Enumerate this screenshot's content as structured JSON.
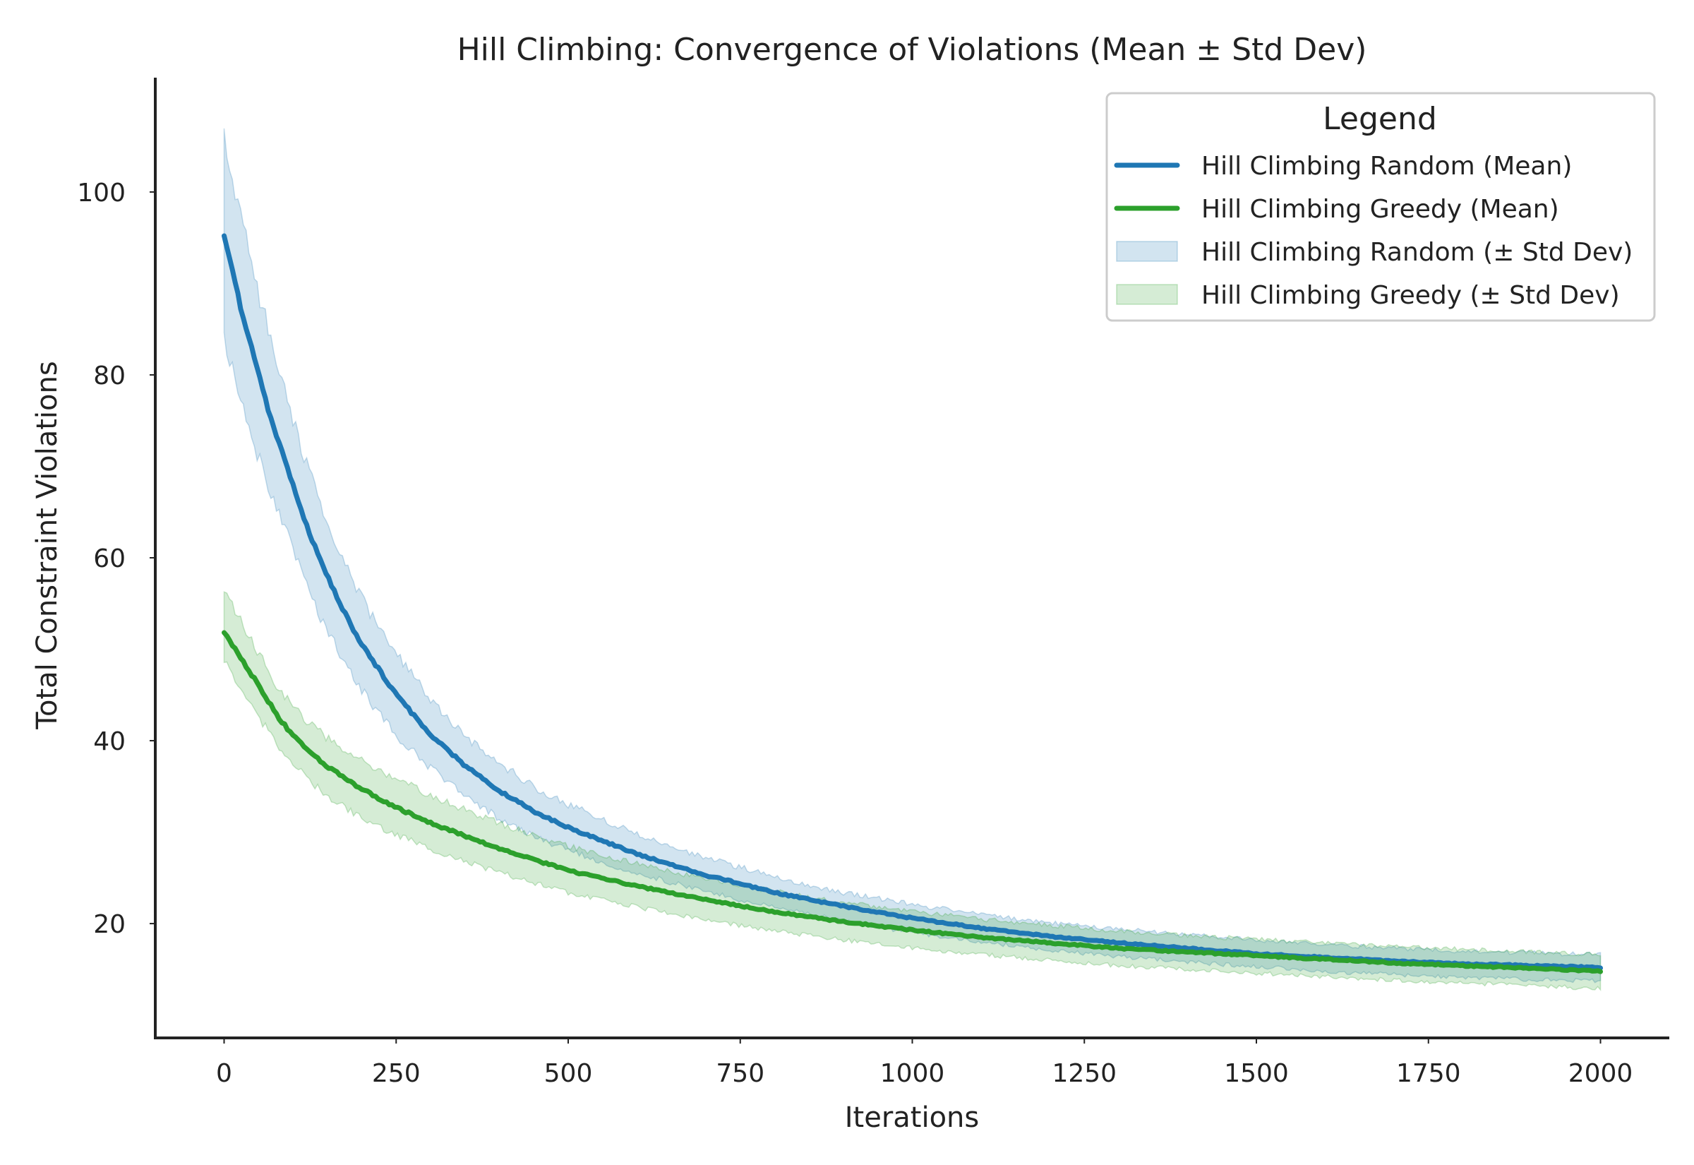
{
  "chart_data": {
    "type": "line",
    "title": "Hill Climbing: Convergence of Violations (Mean ± Std Dev)",
    "xlabel": "Iterations",
    "ylabel": "Total Constraint Violations",
    "xlim": [
      -100,
      2100
    ],
    "ylim": [
      7.5,
      112.5
    ],
    "xticks": [
      0,
      250,
      500,
      750,
      1000,
      1250,
      1500,
      1750,
      2000
    ],
    "yticks": [
      20,
      40,
      60,
      80,
      100
    ],
    "grid": false,
    "legend": {
      "title": "Legend",
      "placement": "top-right",
      "entries": [
        {
          "label": "Hill Climbing Random (Mean)",
          "kind": "line",
          "series": "random"
        },
        {
          "label": "Hill Climbing Greedy (Mean)",
          "kind": "line",
          "series": "greedy"
        },
        {
          "label": "Hill Climbing Random (± Std Dev)",
          "kind": "band",
          "series": "random"
        },
        {
          "label": "Hill Climbing Greedy (± Std Dev)",
          "kind": "band",
          "series": "greedy"
        }
      ]
    },
    "series": [
      {
        "id": "random",
        "color": "#1f77b4",
        "band_color": "#1f77b4",
        "x": [
          0,
          25,
          50,
          75,
          100,
          125,
          150,
          175,
          200,
          250,
          300,
          350,
          400,
          450,
          500,
          600,
          700,
          800,
          900,
          1000,
          1100,
          1200,
          1300,
          1400,
          1500,
          1600,
          1700,
          1800,
          1900,
          2000
        ],
        "mean": [
          95,
          87,
          80,
          73.5,
          68,
          62.5,
          58,
          54,
          50.5,
          45,
          40.7,
          37.3,
          34.5,
          32.3,
          30.5,
          27.6,
          25.3,
          23.4,
          21.9,
          20.6,
          19.5,
          18.6,
          17.9,
          17.3,
          16.7,
          16.3,
          15.9,
          15.6,
          15.4,
          15.2
        ],
        "lower": [
          84,
          77,
          71,
          65.5,
          61,
          56,
          52,
          48.5,
          45.5,
          40.5,
          37,
          34,
          31.5,
          29.5,
          28,
          25.5,
          23.5,
          21.7,
          20.3,
          19,
          18,
          17.1,
          16.4,
          15.8,
          15.3,
          14.8,
          14.4,
          14.1,
          13.9,
          13.7
        ],
        "upper": [
          106,
          97,
          89,
          82,
          75,
          69,
          64,
          59.5,
          55.5,
          49.5,
          44.5,
          40.5,
          37.5,
          35,
          33,
          29.8,
          27.2,
          25.1,
          23.4,
          22.1,
          21,
          20.1,
          19.4,
          18.8,
          18.2,
          17.7,
          17.3,
          17,
          16.8,
          16.6
        ]
      },
      {
        "id": "greedy",
        "color": "#2ca02c",
        "band_color": "#2ca02c",
        "x": [
          0,
          25,
          50,
          75,
          100,
          125,
          150,
          175,
          200,
          250,
          300,
          350,
          400,
          450,
          500,
          600,
          700,
          800,
          900,
          1000,
          1100,
          1200,
          1300,
          1400,
          1500,
          1600,
          1700,
          1800,
          1900,
          2000
        ],
        "mean": [
          52,
          49,
          46,
          43,
          40.5,
          38.8,
          37.2,
          36,
          34.7,
          32.7,
          31,
          29.6,
          28.2,
          27,
          25.8,
          24.1,
          22.6,
          21.3,
          20.2,
          19.3,
          18.5,
          17.9,
          17.3,
          16.9,
          16.5,
          16.1,
          15.7,
          15.4,
          15.1,
          14.8
        ],
        "lower": [
          48.5,
          45.5,
          42.5,
          39.8,
          37.5,
          35.5,
          34,
          32.8,
          31.5,
          29.7,
          28.2,
          26.8,
          25.6,
          24.5,
          23.4,
          21.8,
          20.4,
          19.2,
          18.2,
          17.3,
          16.6,
          16,
          15.4,
          15,
          14.6,
          14.2,
          13.8,
          13.5,
          13.2,
          12.9
        ],
        "upper": [
          56,
          53,
          49.5,
          46.3,
          43.8,
          41.8,
          40.3,
          39,
          37.8,
          35.8,
          34,
          32.5,
          31,
          29.7,
          28.5,
          26.5,
          24.9,
          23.5,
          22.3,
          21.3,
          20.5,
          19.8,
          19.2,
          18.7,
          18.3,
          17.9,
          17.5,
          17.2,
          16.9,
          16.6
        ]
      }
    ]
  }
}
